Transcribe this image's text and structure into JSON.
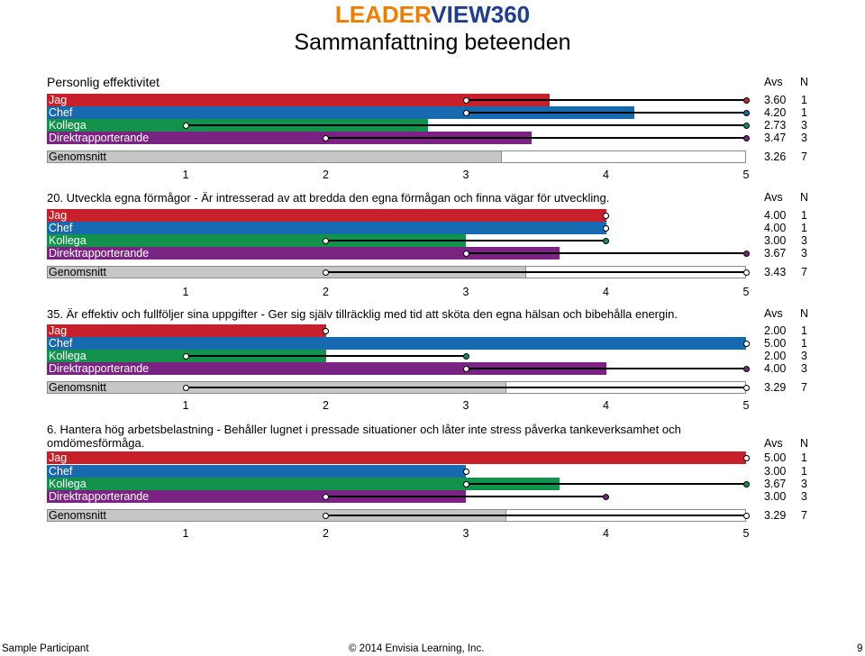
{
  "brand": {
    "part1": "LEADER",
    "part2": "VIEW360"
  },
  "page_title": "Sammanfattning beteenden",
  "header_avs": "Avs",
  "header_n": "N",
  "scale_ticks": [
    "1",
    "2",
    "3",
    "4",
    "5"
  ],
  "colors": {
    "jag": "#c8202b",
    "chef": "#1769b0",
    "kollega": "#12924a",
    "direkt": "#7a2382",
    "genomsnitt": "#c6c6c6"
  },
  "sections": [
    {
      "title": "Personlig effektivitet",
      "rows": [
        {
          "label": "Jag",
          "value": "3.60",
          "n": "1",
          "fill": 3.6,
          "range": [
            3,
            5
          ]
        },
        {
          "label": "Chef",
          "value": "4.20",
          "n": "1",
          "fill": 4.2,
          "range": [
            3,
            5
          ]
        },
        {
          "label": "Kollega",
          "value": "2.73",
          "n": "3",
          "fill": 2.73,
          "range": [
            1,
            5
          ]
        },
        {
          "label": "Direktrapporterande",
          "value": "3.47",
          "n": "3",
          "fill": 3.47,
          "range": [
            2,
            5
          ]
        }
      ],
      "avg": {
        "label": "Genomsnitt",
        "value": "3.26",
        "n": "7",
        "fill": 3.26
      }
    },
    {
      "title": "20. Utveckla egna förmågor - Är intresserad av att bredda den egna förmågan och finna vägar för utveckling.",
      "rows": [
        {
          "label": "Jag",
          "value": "4.00",
          "n": "1",
          "fill": 4.0,
          "range": [
            4,
            4
          ]
        },
        {
          "label": "Chef",
          "value": "4.00",
          "n": "1",
          "fill": 4.0,
          "range": [
            4,
            4
          ]
        },
        {
          "label": "Kollega",
          "value": "3.00",
          "n": "3",
          "fill": 3.0,
          "range": [
            2,
            4
          ]
        },
        {
          "label": "Direktrapporterande",
          "value": "3.67",
          "n": "3",
          "fill": 3.67,
          "range": [
            3,
            5
          ]
        }
      ],
      "avg": {
        "label": "Genomsnitt",
        "value": "3.43",
        "n": "7",
        "fill": 3.43,
        "range": [
          2,
          5
        ]
      }
    },
    {
      "title": "35. Är effektiv och fullföljer sina uppgifter - Ger sig själv tillräcklig med tid att sköta den egna hälsan och bibehålla energin.",
      "rows": [
        {
          "label": "Jag",
          "value": "2.00",
          "n": "1",
          "fill": 2.0,
          "range": [
            2,
            2
          ]
        },
        {
          "label": "Chef",
          "value": "5.00",
          "n": "1",
          "fill": 5.0,
          "range": [
            5,
            5
          ]
        },
        {
          "label": "Kollega",
          "value": "2.00",
          "n": "3",
          "fill": 2.0,
          "range": [
            1,
            3
          ]
        },
        {
          "label": "Direktrapporterande",
          "value": "4.00",
          "n": "3",
          "fill": 4.0,
          "range": [
            3,
            5
          ]
        }
      ],
      "avg": {
        "label": "Genomsnitt",
        "value": "3.29",
        "n": "7",
        "fill": 3.29,
        "range": [
          1,
          5
        ]
      }
    },
    {
      "title": "6. Hantera hög arbetsbelastning - Behåller lugnet i pressade situationer och låter inte stress påverka tankeverksamhet och omdömesförmåga.",
      "rows": [
        {
          "label": "Jag",
          "value": "5.00",
          "n": "1",
          "fill": 5.0,
          "range": [
            5,
            5
          ]
        },
        {
          "label": "Chef",
          "value": "3.00",
          "n": "1",
          "fill": 3.0,
          "range": [
            3,
            3
          ]
        },
        {
          "label": "Kollega",
          "value": "3.67",
          "n": "3",
          "fill": 3.67,
          "range": [
            3,
            5
          ]
        },
        {
          "label": "Direktrapporterande",
          "value": "3.00",
          "n": "3",
          "fill": 3.0,
          "range": [
            2,
            4
          ]
        }
      ],
      "avg": {
        "label": "Genomsnitt",
        "value": "3.29",
        "n": "7",
        "fill": 3.29,
        "range": [
          2,
          5
        ]
      }
    }
  ],
  "footer": {
    "participant": "Sample Participant",
    "copyright": "© 2014 Envisia Learning, Inc.",
    "page": "9"
  }
}
